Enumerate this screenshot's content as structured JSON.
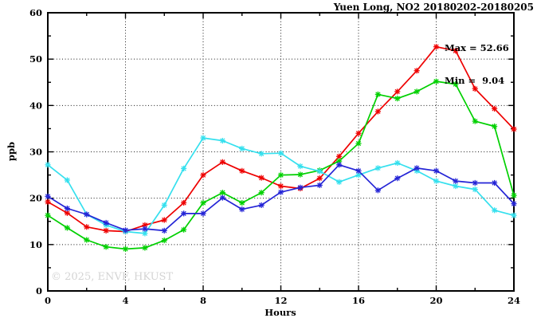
{
  "chart_data": {
    "type": "line",
    "title": "Yuen Long, NO2 20180202-20180205",
    "xlabel": "Hours",
    "ylabel": "ppb",
    "xlim": [
      0,
      24
    ],
    "ylim": [
      0,
      60
    ],
    "x_major_ticks": [
      0,
      4,
      8,
      12,
      16,
      20,
      24
    ],
    "x_minor_tick_step": 2,
    "y_major_ticks": [
      0,
      10,
      20,
      30,
      40,
      50,
      60
    ],
    "y_minor_tick_step": 5,
    "x_gridlines": [
      4,
      8,
      12,
      16,
      20
    ],
    "y_gridlines": [
      10,
      20,
      30,
      40,
      50
    ],
    "grid_style": "dotted",
    "legend_position": "none",
    "marker": "asterisk",
    "annotations": {
      "max_label": "Max = 52.66",
      "min_label": "Min =  9.04"
    },
    "watermark": "© 2025, ENVF, HKUST",
    "x": [
      0,
      1,
      2,
      3,
      4,
      5,
      6,
      7,
      8,
      9,
      10,
      11,
      12,
      13,
      14,
      15,
      16,
      17,
      18,
      19,
      20,
      21,
      22,
      23,
      24
    ],
    "series": [
      {
        "name": "red",
        "color": "#ee0000",
        "values": [
          19.2,
          16.8,
          13.8,
          13.0,
          12.8,
          14.2,
          15.3,
          19.0,
          25.0,
          27.8,
          25.9,
          24.4,
          22.6,
          22.1,
          24.3,
          29.0,
          34.0,
          38.7,
          43.0,
          47.5,
          52.66,
          51.8,
          43.6,
          39.3,
          34.9
        ]
      },
      {
        "name": "green",
        "color": "#00d000",
        "values": [
          16.3,
          13.6,
          11.0,
          9.5,
          9.04,
          9.3,
          10.9,
          13.2,
          19.0,
          21.2,
          19.0,
          21.2,
          25.0,
          25.1,
          26.0,
          28.0,
          31.8,
          42.4,
          41.5,
          43.0,
          45.2,
          44.6,
          36.6,
          35.5,
          20.6
        ]
      },
      {
        "name": "cyan",
        "color": "#35e0ee",
        "values": [
          27.2,
          23.9,
          16.5,
          14.2,
          12.8,
          12.4,
          18.5,
          26.4,
          33.0,
          32.4,
          30.7,
          29.6,
          29.7,
          26.9,
          25.8,
          23.5,
          25.0,
          26.5,
          27.6,
          25.9,
          23.7,
          22.6,
          21.9,
          17.4,
          16.3
        ]
      },
      {
        "name": "blue",
        "color": "#2424d6",
        "values": [
          20.4,
          17.8,
          16.5,
          14.7,
          13.1,
          13.4,
          13.0,
          16.7,
          16.7,
          20.1,
          17.6,
          18.5,
          21.3,
          22.3,
          22.8,
          27.2,
          25.9,
          21.7,
          24.3,
          26.5,
          25.9,
          23.7,
          23.3,
          23.3,
          18.8
        ]
      }
    ]
  }
}
